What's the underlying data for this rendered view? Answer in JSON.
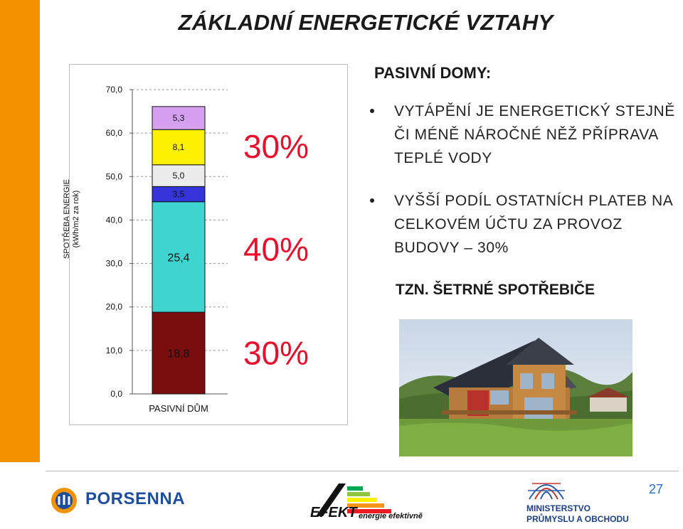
{
  "title": "ZÁKLADNÍ ENERGETICKÉ VZTAHY",
  "chart_data": {
    "type": "bar",
    "stacked": true,
    "categories": [
      "PASIVNÍ DŮM"
    ],
    "ylabel": "SPOTŘEBA ENERGIE\n(kWh/m2 za rok)",
    "ylim": [
      0,
      70
    ],
    "yticks": [
      "0,0",
      "10,0",
      "20,0",
      "30,0",
      "40,0",
      "50,0",
      "60,0",
      "70,0"
    ],
    "grid": true,
    "series": [
      {
        "values": [
          18.8
        ],
        "label": "18,8",
        "color": "#7a0d0d"
      },
      {
        "values": [
          25.4
        ],
        "label": "25,4",
        "color": "#3fd4d0"
      },
      {
        "values": [
          3.5
        ],
        "label": "3,5",
        "color": "#3334d9"
      },
      {
        "values": [
          5.0
        ],
        "label": "5,0",
        "color": "#ececec"
      },
      {
        "values": [
          8.1
        ],
        "label": "8,1",
        "color": "#fff200"
      },
      {
        "values": [
          5.3
        ],
        "label": "5,3",
        "color": "#d6a0f0"
      }
    ],
    "annotations": [
      {
        "text": "30%",
        "color": "#e8112d",
        "spans_series": [
          0
        ]
      },
      {
        "text": "40%",
        "color": "#e8112d",
        "spans_series": [
          1,
          2
        ]
      },
      {
        "text": "30%",
        "color": "#e8112d",
        "spans_series": [
          3,
          4,
          5
        ]
      }
    ]
  },
  "panel": {
    "heading": "PASIVNÍ DOMY:",
    "bullets": [
      "VYTÁPĚNÍ JE ENERGETICKÝ STEJNĚ ČI MÉNĚ NÁROČNÉ NĚŽ PŘÍPRAVA TEPLÉ VODY",
      "VYŠŠÍ PODÍL OSTATNÍCH PLATEB NA CELKOVÉM ÚČTU ZA PROVOZ BUDOVY – 30%"
    ],
    "tzn": "TZN. ŠETRNÉ SPOTŘEBIČE"
  },
  "footer": {
    "porsenna": "PORSENNA",
    "efekt_main": "EFEKT",
    "efekt_sub": "energie efektivně",
    "ministry_line1": "MINISTERSTVO",
    "ministry_line2": "PRŮMYSLU A OBCHODU",
    "page_number": "27"
  },
  "colors": {
    "accent_orange": "#f39200",
    "percent_red": "#e8112d",
    "page_blue": "#2a6fd6"
  }
}
